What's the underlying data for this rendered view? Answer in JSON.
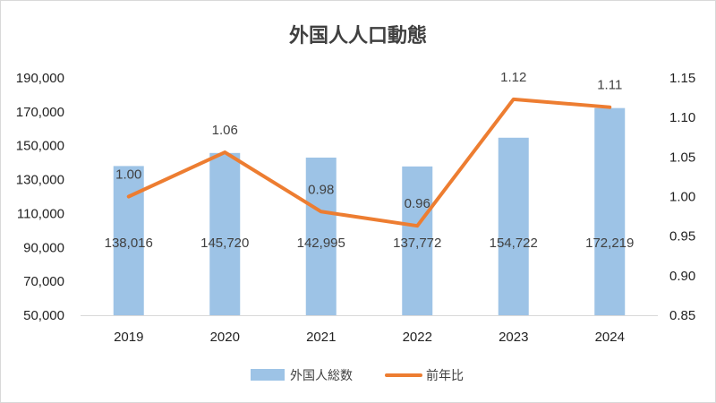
{
  "chart_data": {
    "type": "bar+line",
    "title": "外国人人口動態",
    "categories": [
      "2019",
      "2020",
      "2021",
      "2022",
      "2023",
      "2024"
    ],
    "series": [
      {
        "name": "外国人総数",
        "type": "bar",
        "axis": "left",
        "color": "#9dc3e6",
        "values": [
          138016,
          145720,
          142995,
          137772,
          154722,
          172219
        ],
        "labels": [
          "138,016",
          "145,720",
          "142,995",
          "137,772",
          "154,722",
          "172,219"
        ]
      },
      {
        "name": "前年比",
        "type": "line",
        "axis": "right",
        "color": "#ed7d31",
        "values": [
          1.0,
          1.056,
          0.981,
          0.963,
          1.123,
          1.113
        ],
        "labels": [
          "1.00",
          "1.06",
          "0.98",
          "0.96",
          "1.12",
          "1.11"
        ]
      }
    ],
    "y_left": {
      "min": 50000,
      "max": 190000,
      "ticks": [
        "50,000",
        "70,000",
        "90,000",
        "110,000",
        "130,000",
        "150,000",
        "170,000",
        "190,000"
      ]
    },
    "y_right": {
      "min": 0.85,
      "max": 1.15,
      "ticks": [
        "0.85",
        "0.90",
        "0.95",
        "1.00",
        "1.05",
        "1.10",
        "1.15"
      ]
    },
    "grid": false,
    "legend": "bottom"
  }
}
